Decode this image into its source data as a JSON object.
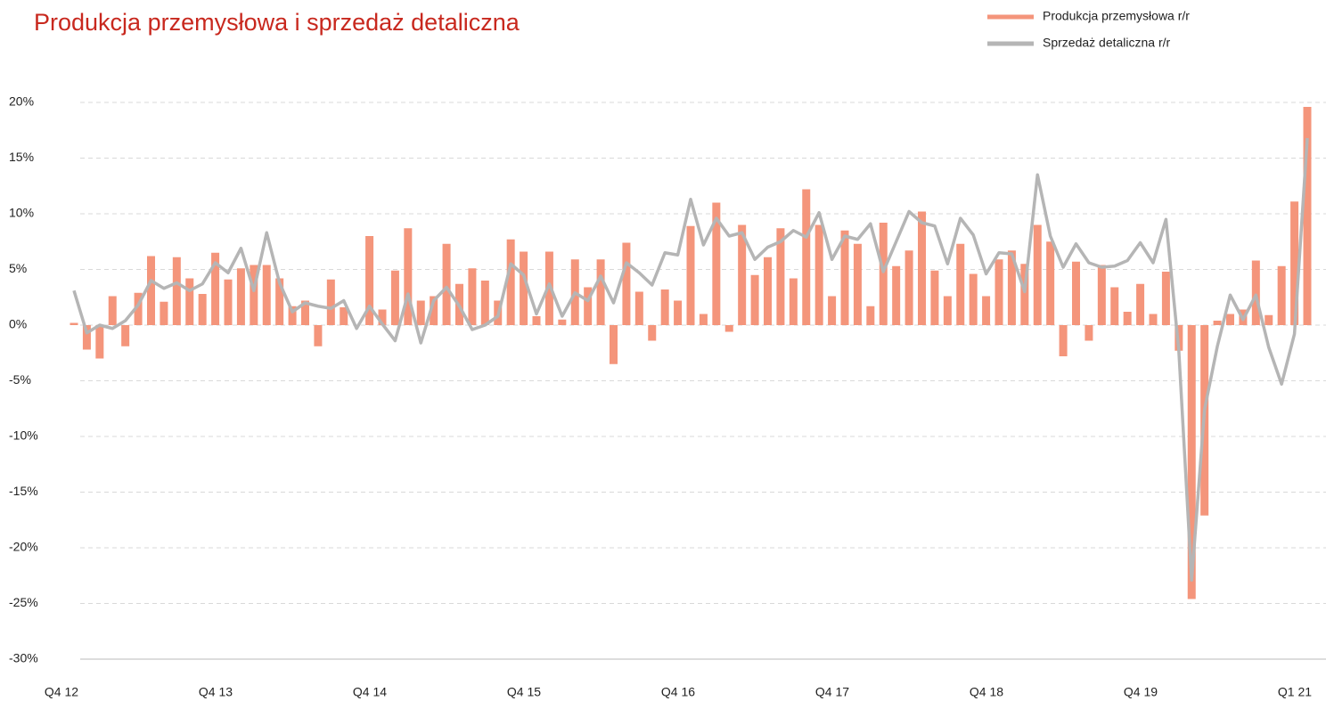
{
  "chart_data": {
    "type": "bar-line",
    "title": "Produkcja przemysłowa i sprzedaż detaliczna",
    "categories": [
      "Q4 12",
      null,
      null,
      null,
      null,
      null,
      null,
      null,
      null,
      null,
      null,
      null,
      "Q4 13",
      null,
      null,
      null,
      null,
      null,
      null,
      null,
      null,
      null,
      null,
      null,
      "Q4 14",
      null,
      null,
      null,
      null,
      null,
      null,
      null,
      null,
      null,
      null,
      null,
      "Q4 15",
      null,
      null,
      null,
      null,
      null,
      null,
      null,
      null,
      null,
      null,
      null,
      "Q4 16",
      null,
      null,
      null,
      null,
      null,
      null,
      null,
      null,
      null,
      null,
      null,
      "Q4 17",
      null,
      null,
      null,
      null,
      null,
      null,
      null,
      null,
      null,
      null,
      null,
      "Q4 18",
      null,
      null,
      null,
      null,
      null,
      null,
      null,
      null,
      null,
      null,
      null,
      "Q4 19",
      null,
      null,
      null,
      null,
      null,
      null,
      null,
      null,
      null,
      null,
      null,
      "Q1 21"
    ],
    "series": [
      {
        "name": "Produkcja przemysłowa r/r",
        "type": "bar",
        "color": "#f4957b",
        "values": [
          0.2,
          -2.2,
          -3.0,
          2.6,
          -1.9,
          2.9,
          6.2,
          2.1,
          6.1,
          4.2,
          2.8,
          6.5,
          4.1,
          5.1,
          5.4,
          5.4,
          4.2,
          1.7,
          2.2,
          -1.9,
          4.1,
          1.6,
          0,
          8.0,
          1.4,
          4.9,
          8.7,
          2.2,
          2.6,
          7.3,
          3.7,
          5.1,
          4.0,
          2.2,
          7.7,
          6.6,
          0.8,
          6.6,
          0.5,
          5.9,
          3.4,
          5.9,
          -3.5,
          7.4,
          3.0,
          -1.4,
          3.2,
          2.2,
          8.9,
          1.0,
          11.0,
          -0.6,
          9.0,
          4.5,
          6.1,
          8.7,
          4.2,
          12.2,
          9.0,
          2.6,
          8.5,
          7.3,
          1.7,
          9.2,
          5.3,
          6.7,
          10.2,
          4.9,
          2.6,
          7.3,
          4.6,
          2.6,
          5.9,
          6.7,
          5.5,
          9.0,
          7.5,
          -2.8,
          5.7,
          -1.4,
          5.4,
          3.4,
          1.2,
          3.7,
          1.0,
          4.8,
          -2.3,
          -24.6,
          -17.1,
          0.4,
          1.0,
          1.4,
          5.8,
          0.9,
          5.3,
          11.1,
          19.6
        ]
      },
      {
        "name": "Sprzedaż detaliczna r/r",
        "type": "line",
        "color": "#b5b5b5",
        "values": [
          3.1,
          -0.7,
          0.0,
          -0.3,
          0.4,
          1.8,
          4.0,
          3.3,
          3.8,
          3.1,
          3.7,
          5.6,
          4.7,
          6.9,
          3.1,
          8.3,
          3.8,
          1.2,
          2.0,
          1.7,
          1.5,
          2.2,
          -0.3,
          1.7,
          0.1,
          -1.4,
          2.8,
          -1.6,
          2.2,
          3.4,
          1.7,
          -0.4,
          0.0,
          0.8,
          5.5,
          4.5,
          1.0,
          3.7,
          0.8,
          2.9,
          2.2,
          4.4,
          2.0,
          5.6,
          4.7,
          3.6,
          6.5,
          6.3,
          11.3,
          7.2,
          9.6,
          8.0,
          8.3,
          5.9,
          7.0,
          7.5,
          8.5,
          7.9,
          10.1,
          5.9,
          8.0,
          7.7,
          9.1,
          4.8,
          7.5,
          10.2,
          9.2,
          8.9,
          5.5,
          9.6,
          8.1,
          4.6,
          6.5,
          6.4,
          3.0,
          13.5,
          8.0,
          5.2,
          7.3,
          5.6,
          5.2,
          5.3,
          5.8,
          7.4,
          5.6,
          9.5,
          -2.3,
          -22.9,
          -7.6,
          -1.9,
          2.7,
          0.5,
          2.7,
          -2.0,
          -5.3,
          -0.8,
          16.8
        ]
      }
    ],
    "ylim": [
      -30,
      20
    ],
    "yticks": [
      {
        "value": -30,
        "label": "-30%"
      },
      {
        "value": -25,
        "label": "-25%"
      },
      {
        "value": -20,
        "label": "-20%"
      },
      {
        "value": -15,
        "label": "-15%"
      },
      {
        "value": -10,
        "label": "-10%"
      },
      {
        "value": -5,
        "label": "-5%"
      },
      {
        "value": 0,
        "label": "0%"
      },
      {
        "value": 5,
        "label": "5%"
      },
      {
        "value": 10,
        "label": "10%"
      },
      {
        "value": 15,
        "label": "15%"
      },
      {
        "value": 20,
        "label": "20%"
      }
    ],
    "grid": true,
    "legend": "top-right"
  }
}
